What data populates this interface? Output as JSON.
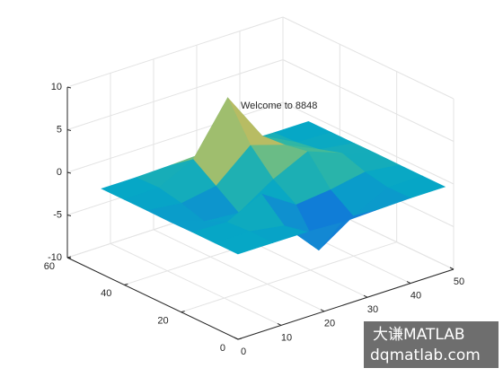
{
  "chart_data": {
    "type": "surface",
    "annotation": "Welcome to 8848",
    "x": [
      0,
      8,
      16,
      24,
      32,
      40,
      48
    ],
    "y": [
      0,
      8,
      16,
      24,
      32,
      40,
      48
    ],
    "z": [
      [
        0,
        -0.01,
        -0.03,
        -0.25,
        -0.11,
        0,
        0
      ],
      [
        0,
        0.05,
        -0.59,
        -4.76,
        -2.09,
        -0.06,
        0
      ],
      [
        0.01,
        -0.14,
        1.86,
        -0.73,
        -0.28,
        0.49,
        0.01
      ],
      [
        -0.04,
        -1.33,
        -1.65,
        0.98,
        2.93,
        1.41,
        0.03
      ],
      [
        0,
        -0.48,
        0.23,
        3.69,
        2.42,
        0.58,
        0.01
      ],
      [
        0,
        0.08,
        2.08,
        8.0,
        2.2,
        0.13,
        0
      ],
      [
        0,
        0,
        0.11,
        0.3,
        0.11,
        0,
        0
      ]
    ],
    "xlim": [
      0,
      50
    ],
    "ylim": [
      0,
      60
    ],
    "zlim": [
      -10,
      10
    ],
    "xticks": [
      0,
      10,
      20,
      30,
      40,
      50
    ],
    "yticks": [
      0,
      20,
      40,
      60
    ],
    "zticks": [
      -10,
      -5,
      0,
      5,
      10
    ],
    "grid": true,
    "colormap": "parula"
  },
  "watermark": {
    "line1": "大谦MATLAB",
    "line2": "dqmatlab.com"
  }
}
